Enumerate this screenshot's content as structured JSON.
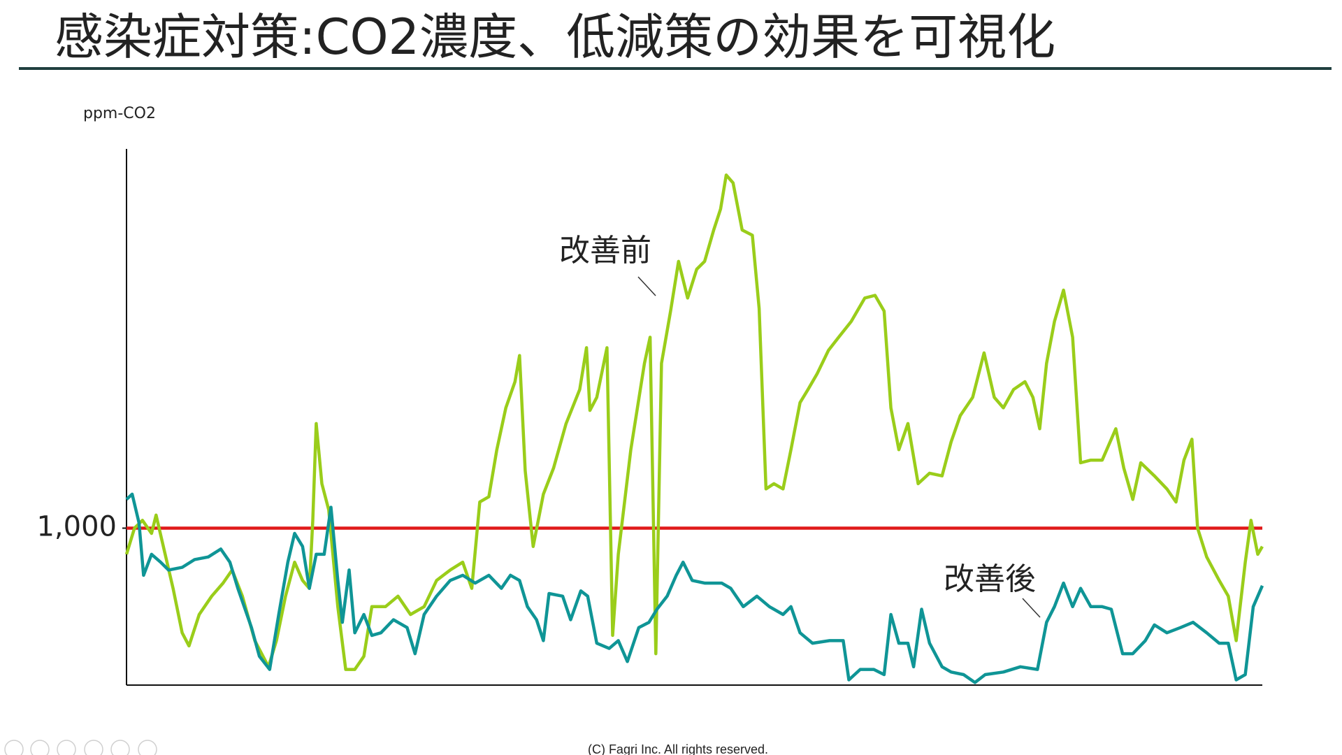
{
  "chart_data": {
    "type": "line",
    "title": "感染症対策:CO2濃度、低減策の効果を可視化",
    "ylabel": "ppm-CO2",
    "footer": "(C) Fagri Inc. All rights reserved.",
    "xlim": [
      0,
      100
    ],
    "ylim": [
      400,
      2450
    ],
    "yticks": [
      {
        "value": 1000,
        "label": "1,000"
      }
    ],
    "threshold": {
      "value": 1000,
      "color": "#e01a1a"
    },
    "grid": false,
    "series": [
      {
        "name": "改善前",
        "color": "#9acd1a",
        "x": [
          0,
          0.7,
          1.4,
          2.2,
          2.6,
          3.4,
          4.1,
          4.9,
          5.5,
          6.4,
          7.5,
          8.5,
          9.3,
          10.2,
          11.3,
          12.5,
          13.2,
          14.0,
          14.8,
          15.5,
          16.1,
          16.4,
          16.7,
          17.2,
          17.8,
          18.6,
          19.3,
          20.1,
          20.9,
          21.6,
          22.8,
          23.9,
          25.0,
          26.2,
          27.3,
          28.5,
          29.6,
          30.4,
          31.1,
          31.9,
          32.6,
          33.4,
          34.2,
          34.6,
          35.1,
          35.8,
          36.7,
          37.6,
          38.7,
          39.9,
          40.5,
          40.8,
          41.4,
          42.3,
          42.8,
          43.3,
          44.4,
          45.6,
          46.1,
          46.6,
          47.1,
          47.9,
          48.6,
          49.4,
          50.2,
          50.9,
          51.7,
          52.3,
          52.8,
          53.4,
          54.2,
          55.1,
          55.7,
          56.3,
          57.0,
          57.8,
          58.5,
          59.3,
          60.0,
          60.8,
          61.8,
          62.7,
          63.8,
          65.0,
          65.9,
          66.7,
          67.3,
          68.0,
          68.8,
          69.7,
          70.7,
          71.8,
          72.6,
          73.4,
          74.5,
          75.5,
          76.4,
          77.2,
          78.1,
          79.1,
          79.8,
          80.4,
          81.0,
          81.7,
          82.5,
          83.3,
          84.0,
          84.9,
          85.9,
          87.1,
          87.8,
          88.6,
          89.3,
          90.5,
          91.6,
          92.4,
          93.1,
          93.8,
          94.3,
          95.1,
          96.2,
          97.0,
          97.7,
          98.5,
          99.0,
          99.6,
          100
        ],
        "values": [
          900,
          1000,
          1030,
          980,
          1050,
          900,
          770,
          600,
          550,
          670,
          740,
          790,
          840,
          740,
          570,
          470,
          570,
          740,
          870,
          800,
          770,
          1030,
          1400,
          1170,
          1070,
          700,
          460,
          460,
          510,
          700,
          700,
          740,
          670,
          700,
          800,
          840,
          870,
          770,
          1100,
          1120,
          1300,
          1460,
          1560,
          1660,
          1220,
          930,
          1130,
          1230,
          1400,
          1530,
          1690,
          1450,
          1500,
          1690,
          590,
          900,
          1300,
          1630,
          1730,
          520,
          1630,
          1830,
          2020,
          1880,
          1990,
          2020,
          2140,
          2220,
          2350,
          2320,
          2140,
          2120,
          1840,
          1150,
          1170,
          1150,
          1300,
          1480,
          1530,
          1590,
          1680,
          1730,
          1790,
          1880,
          1890,
          1830,
          1460,
          1300,
          1400,
          1170,
          1210,
          1200,
          1330,
          1430,
          1500,
          1670,
          1500,
          1460,
          1530,
          1560,
          1500,
          1380,
          1630,
          1790,
          1910,
          1730,
          1250,
          1260,
          1260,
          1380,
          1230,
          1110,
          1250,
          1200,
          1150,
          1100,
          1260,
          1340,
          1000,
          890,
          800,
          740,
          570,
          870,
          1030,
          900,
          930
        ]
      },
      {
        "name": "改善後",
        "color": "#0f9596",
        "x": [
          0,
          0.5,
          1.1,
          1.5,
          2.2,
          3.0,
          3.7,
          4.9,
          6.0,
          7.2,
          8.3,
          9.1,
          9.8,
          11.0,
          11.7,
          12.6,
          13.4,
          14.2,
          14.8,
          15.5,
          16.1,
          16.7,
          17.4,
          18.0,
          18.6,
          19.0,
          19.6,
          20.1,
          20.9,
          21.6,
          22.4,
          23.5,
          24.7,
          25.4,
          26.2,
          27.3,
          28.5,
          29.6,
          30.7,
          31.9,
          33.0,
          33.8,
          34.6,
          35.3,
          36.1,
          36.7,
          37.2,
          38.4,
          39.1,
          40.0,
          40.6,
          41.4,
          42.5,
          43.3,
          44.1,
          45.1,
          46.0,
          46.7,
          47.6,
          48.4,
          49.0,
          49.8,
          50.9,
          52.4,
          53.2,
          54.3,
          55.5,
          56.6,
          57.8,
          58.5,
          59.3,
          60.4,
          61.9,
          63.1,
          63.6,
          64.6,
          65.8,
          66.7,
          67.3,
          68.0,
          68.8,
          69.3,
          70.0,
          70.7,
          71.8,
          72.6,
          73.7,
          74.7,
          75.6,
          77.2,
          78.7,
          80.2,
          81.0,
          81.7,
          82.5,
          83.3,
          84.0,
          84.9,
          85.9,
          86.7,
          87.7,
          88.6,
          89.7,
          90.5,
          91.6,
          92.8,
          93.9,
          95.1,
          96.2,
          97.0,
          97.7,
          98.5,
          99.2,
          100
        ],
        "values": [
          1110,
          1130,
          1020,
          820,
          900,
          870,
          840,
          850,
          880,
          890,
          920,
          870,
          770,
          620,
          510,
          460,
          670,
          870,
          980,
          930,
          770,
          900,
          900,
          1080,
          800,
          640,
          840,
          600,
          670,
          590,
          600,
          650,
          620,
          520,
          670,
          740,
          800,
          820,
          790,
          820,
          770,
          820,
          800,
          700,
          650,
          570,
          750,
          740,
          650,
          760,
          740,
          560,
          540,
          570,
          490,
          620,
          640,
          690,
          740,
          820,
          870,
          800,
          790,
          790,
          770,
          700,
          740,
          700,
          670,
          700,
          600,
          560,
          570,
          570,
          420,
          460,
          460,
          440,
          670,
          560,
          560,
          470,
          690,
          560,
          470,
          450,
          440,
          410,
          440,
          450,
          470,
          460,
          640,
          700,
          790,
          700,
          770,
          700,
          700,
          690,
          520,
          520,
          570,
          630,
          600,
          620,
          640,
          600,
          560,
          560,
          420,
          440,
          700,
          780
        ]
      }
    ]
  }
}
